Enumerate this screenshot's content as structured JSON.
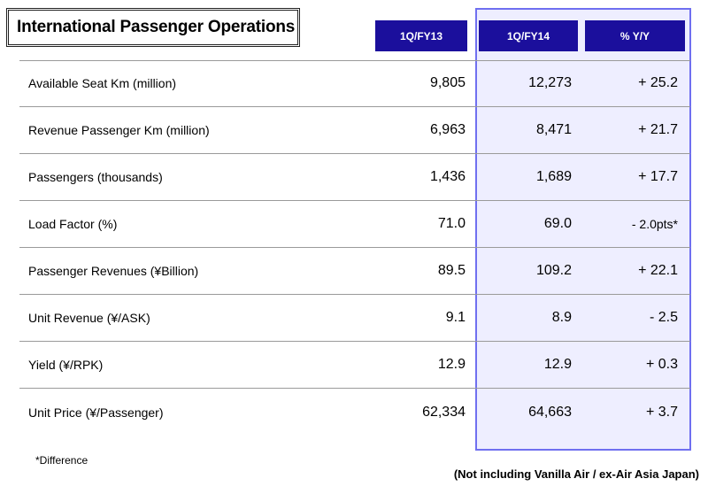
{
  "title": "International Passenger Operations",
  "columns": [
    "1Q/FY13",
    "1Q/FY14",
    "% Y/Y"
  ],
  "rows": [
    {
      "label": "Available Seat Km (million)",
      "fy13": "9,805",
      "fy14": "12,273",
      "yoy": "+ 25.2"
    },
    {
      "label": "Revenue Passenger Km (million)",
      "fy13": "6,963",
      "fy14": "8,471",
      "yoy": "+ 21.7"
    },
    {
      "label": "Passengers (thousands)",
      "fy13": "1,436",
      "fy14": "1,689",
      "yoy": "+ 17.7"
    },
    {
      "label": "Load Factor (%)",
      "fy13": "71.0",
      "fy14": "69.0",
      "yoy": "- 2.0pts*"
    },
    {
      "label": "Passenger Revenues (¥Billion)",
      "fy13": "89.5",
      "fy14": "109.2",
      "yoy": "+ 22.1"
    },
    {
      "label": "Unit Revenue (¥/ASK)",
      "fy13": "9.1",
      "fy14": "8.9",
      "yoy": "- 2.5"
    },
    {
      "label": "Yield (¥/RPK)",
      "fy13": "12.9",
      "fy14": "12.9",
      "yoy": "+ 0.3"
    },
    {
      "label": "Unit Price (¥/Passenger)",
      "fy13": "62,334",
      "fy14": "64,663",
      "yoy": "+ 3.7"
    }
  ],
  "footnote": "*Difference",
  "note": "(Not including Vanilla Air / ex-Air Asia Japan)",
  "colors": {
    "header_bg": "#1b0f9c",
    "highlight_border": "#6f6ff0",
    "highlight_bg": "#eeeeff"
  }
}
